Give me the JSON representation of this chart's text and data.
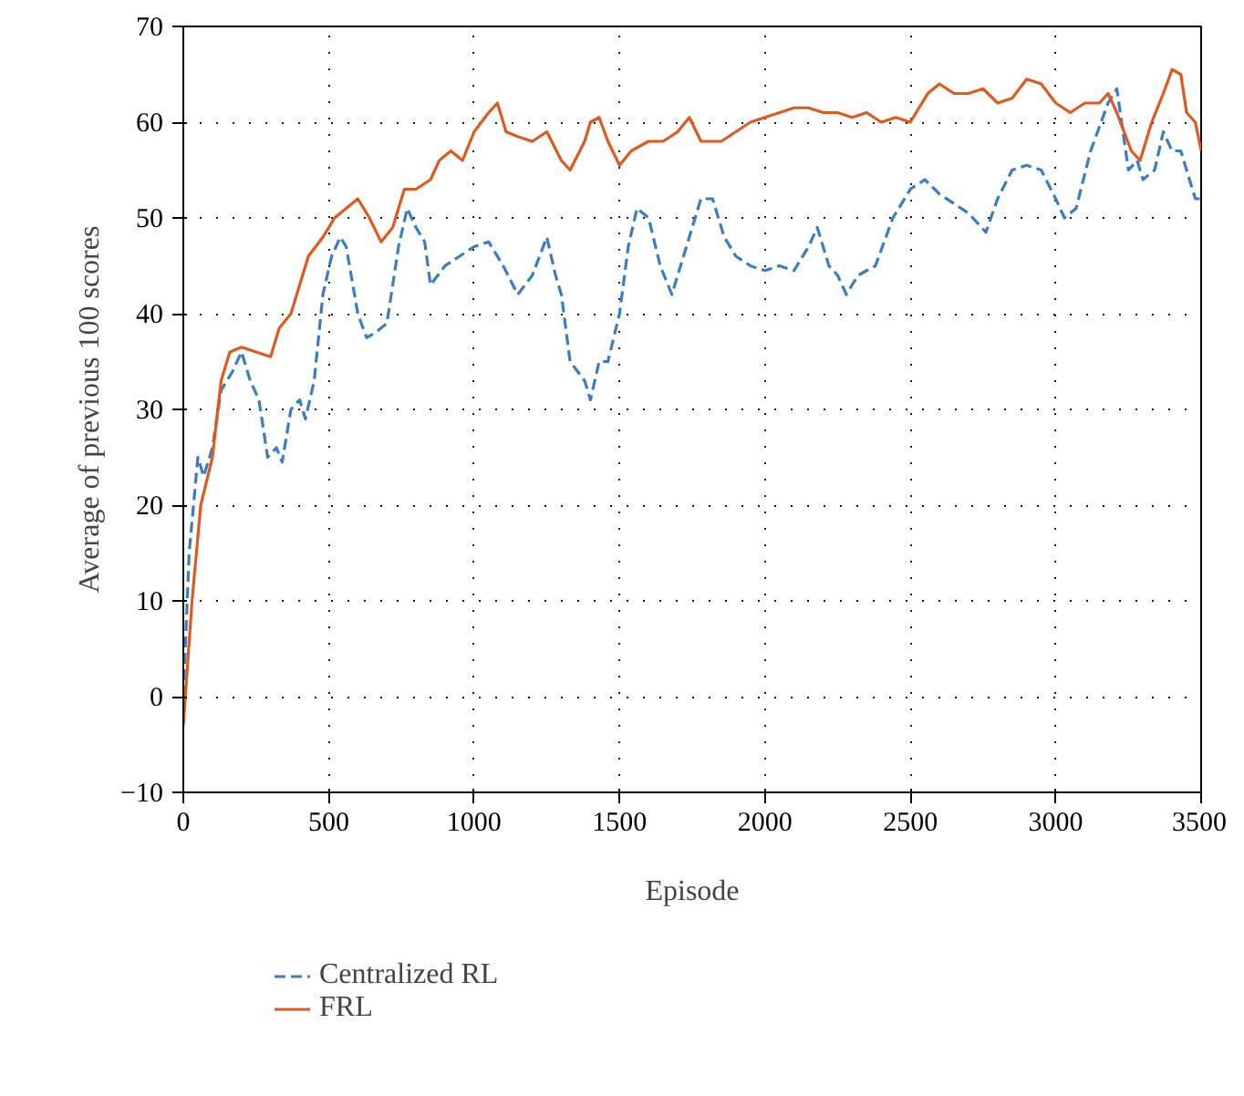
{
  "chart_data": {
    "type": "line",
    "xlabel": "Episode",
    "ylabel": "Average of previous 100 scores",
    "xlim": [
      0,
      3500
    ],
    "xticks": [
      0,
      500,
      1000,
      1500,
      2000,
      2500,
      3000,
      3500
    ],
    "ylim": [
      -10,
      70
    ],
    "yticks": [
      -10,
      0,
      10,
      20,
      30,
      40,
      50,
      60,
      70
    ],
    "grid": true,
    "legend": "bottom",
    "series": [
      {
        "name": "Centralized RL",
        "color": "#3a7dc4",
        "line_style": "dashed",
        "x": [
          0,
          20,
          50,
          70,
          100,
          130,
          170,
          200,
          230,
          260,
          290,
          320,
          340,
          370,
          400,
          420,
          450,
          480,
          510,
          540,
          560,
          600,
          630,
          660,
          700,
          740,
          770,
          800,
          830,
          850,
          900,
          950,
          1000,
          1050,
          1100,
          1150,
          1200,
          1250,
          1280,
          1300,
          1330,
          1380,
          1400,
          1430,
          1460,
          1500,
          1530,
          1560,
          1600,
          1640,
          1680,
          1720,
          1780,
          1820,
          1860,
          1900,
          1950,
          2000,
          2050,
          2100,
          2150,
          2180,
          2220,
          2250,
          2280,
          2320,
          2380,
          2440,
          2500,
          2550,
          2600,
          2650,
          2700,
          2760,
          2800,
          2850,
          2900,
          2950,
          3000,
          3030,
          3070,
          3120,
          3180,
          3210,
          3250,
          3280,
          3300,
          3340,
          3370,
          3400,
          3430,
          3460,
          3480,
          3500
        ],
        "values": [
          0,
          15,
          25,
          23,
          26,
          32,
          34,
          36,
          33,
          31,
          25,
          26,
          24.5,
          30,
          31,
          29,
          33,
          42,
          46,
          48,
          47,
          40,
          37.5,
          38,
          39,
          47,
          51,
          49,
          47.5,
          43,
          45,
          46,
          47,
          47.5,
          45,
          42,
          44,
          48,
          44,
          42,
          35,
          33,
          31,
          35,
          35,
          40,
          47,
          51,
          50,
          45,
          42,
          46,
          52,
          52,
          48,
          46,
          45,
          44.5,
          45,
          44.5,
          47,
          49,
          45,
          44,
          42,
          44,
          45,
          50,
          53,
          54,
          52.5,
          51.5,
          50.5,
          48.5,
          52,
          55,
          55.5,
          55,
          52,
          50,
          51,
          57,
          62,
          63.5,
          55,
          56,
          54,
          55,
          59,
          57,
          57,
          54,
          52,
          52
        ]
      },
      {
        "name": "FRL",
        "color": "#e05a1e",
        "line_style": "solid",
        "x": [
          0,
          30,
          60,
          100,
          130,
          160,
          200,
          250,
          300,
          330,
          370,
          400,
          430,
          480,
          520,
          560,
          600,
          640,
          680,
          720,
          760,
          800,
          850,
          880,
          920,
          960,
          1000,
          1050,
          1080,
          1110,
          1150,
          1200,
          1250,
          1300,
          1330,
          1380,
          1400,
          1430,
          1460,
          1500,
          1540,
          1600,
          1650,
          1700,
          1740,
          1780,
          1850,
          1900,
          1950,
          2000,
          2050,
          2100,
          2150,
          2200,
          2250,
          2300,
          2350,
          2400,
          2450,
          2500,
          2520,
          2560,
          2600,
          2650,
          2700,
          2750,
          2800,
          2850,
          2900,
          2950,
          3000,
          3050,
          3100,
          3150,
          3180,
          3210,
          3260,
          3290,
          3330,
          3370,
          3400,
          3430,
          3450,
          3480,
          3500
        ],
        "values": [
          -3,
          10,
          20,
          25,
          33,
          36,
          36.5,
          36,
          35.5,
          38.5,
          40,
          43,
          46,
          48,
          50,
          51,
          52,
          50,
          47.5,
          49,
          53,
          53,
          54,
          56,
          57,
          56,
          59,
          61,
          62,
          59,
          58.5,
          58,
          59,
          56,
          55,
          58,
          60,
          60.5,
          58,
          55.5,
          57,
          58,
          58,
          59,
          60.5,
          58,
          58,
          59,
          60,
          60.5,
          61,
          61.5,
          61.5,
          61,
          61,
          60.5,
          61,
          60,
          60.5,
          60,
          61,
          63,
          64,
          63,
          63,
          63.5,
          62,
          62.5,
          64.5,
          64,
          62,
          61,
          62,
          62,
          63,
          61,
          57,
          56,
          60,
          63,
          65.5,
          65,
          61,
          60,
          57
        ]
      }
    ]
  }
}
